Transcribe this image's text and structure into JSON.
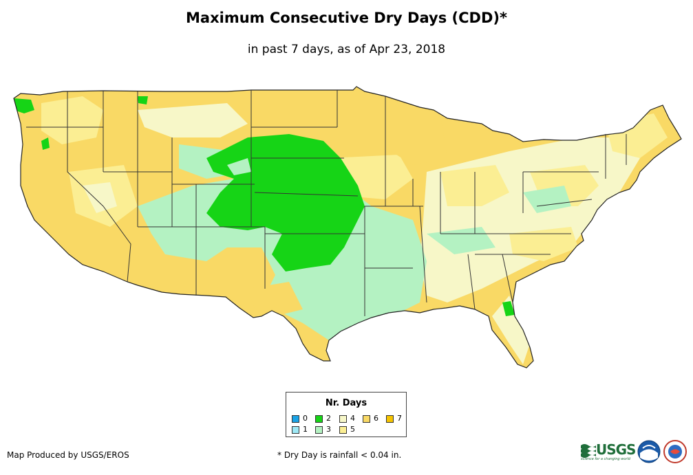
{
  "title": "Maximum Consecutive Dry Days (CDD)*",
  "subtitle": "in past 7 days, as of Apr 23, 2018",
  "legend": {
    "title": "Nr. Days",
    "items": [
      {
        "label": "0",
        "color": "#1aa3e6"
      },
      {
        "label": "1",
        "color": "#9ee8f5"
      },
      {
        "label": "2",
        "color": "#16d416"
      },
      {
        "label": "3",
        "color": "#b4f2c2"
      },
      {
        "label": "4",
        "color": "#f7f7c8"
      },
      {
        "label": "5",
        "color": "#fbee93"
      },
      {
        "label": "6",
        "color": "#f9d965"
      },
      {
        "label": "7",
        "color": "#f6c400"
      }
    ]
  },
  "credit": "Map Produced by USGS/EROS",
  "footnote": "* Dry Day is rainfall < 0.04 in.",
  "logos": {
    "usgs_text": "USGS",
    "usgs_tagline": "science for a changing world",
    "noaa_text": "NOAA"
  },
  "colors": {
    "state_border": "#333333",
    "background": "#ffffff"
  }
}
